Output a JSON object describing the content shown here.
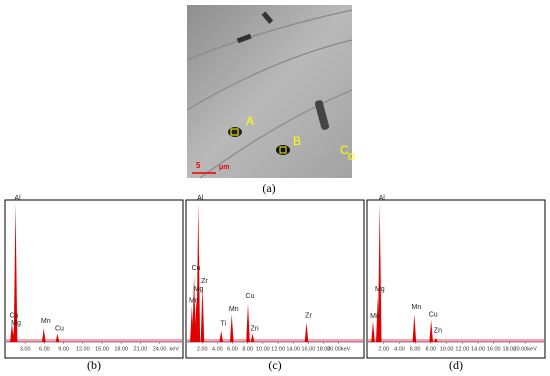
{
  "figure": {
    "micrograph": {
      "caption": "(a)",
      "markers": [
        "A",
        "B",
        "C"
      ],
      "scale_value": "5",
      "scale_unit": "μm"
    },
    "spectra": [
      {
        "caption": "(b)",
        "xlim": [
          0,
          27.5
        ],
        "unit": "keV",
        "xticks": [
          {
            "value": 3,
            "label": "3.00"
          },
          {
            "value": 6,
            "label": "6.00"
          },
          {
            "value": 9,
            "label": "9.00"
          },
          {
            "value": 12,
            "label": "12.00"
          },
          {
            "value": 15,
            "label": "15.00"
          },
          {
            "value": 18,
            "label": "18.00"
          },
          {
            "value": 21,
            "label": "21.00"
          },
          {
            "value": 24,
            "label": "24.00"
          }
        ],
        "peaks": [
          {
            "element": "Al",
            "kev": 1.49,
            "height": 100
          },
          {
            "element": "Cu",
            "kev": 0.93,
            "height": 14
          },
          {
            "element": "Mg",
            "kev": 1.25,
            "height": 10
          },
          {
            "element": "Mn",
            "kev": 5.9,
            "height": 10
          },
          {
            "element": "Cu",
            "kev": 8.04,
            "height": 6
          }
        ]
      },
      {
        "caption": "(c)",
        "xlim": [
          0,
          23.2
        ],
        "xticks": [
          {
            "value": 2,
            "label": "2.00"
          },
          {
            "value": 4,
            "label": "4.00"
          },
          {
            "value": 6,
            "label": "6.00"
          },
          {
            "value": 8,
            "label": "8.00"
          },
          {
            "value": 10,
            "label": "10.00"
          },
          {
            "value": 12,
            "label": "12.00"
          },
          {
            "value": 14,
            "label": "14.00"
          },
          {
            "value": 16,
            "label": "16.00"
          },
          {
            "value": 18,
            "label": "18.00"
          },
          {
            "value": 20,
            "label": "20.00keV"
          }
        ],
        "peaks": [
          {
            "element": "Al",
            "kev": 1.49,
            "height": 100
          },
          {
            "element": "Cu",
            "kev": 0.93,
            "height": 48
          },
          {
            "element": "Zr",
            "kev": 2.04,
            "height": 40
          },
          {
            "element": "Mg",
            "kev": 1.25,
            "height": 33
          },
          {
            "element": "Mn",
            "kev": 0.64,
            "height": 26
          },
          {
            "element": "Ti",
            "kev": 4.51,
            "height": 8
          },
          {
            "element": "Mn",
            "kev": 5.9,
            "height": 20
          },
          {
            "element": "Cu",
            "kev": 8.04,
            "height": 28
          },
          {
            "element": "Zn",
            "kev": 8.64,
            "height": 6
          },
          {
            "element": "Zr",
            "kev": 15.75,
            "height": 14
          }
        ]
      },
      {
        "caption": "(d)",
        "xlim": [
          0,
          22.4
        ],
        "xticks": [
          {
            "value": 2,
            "label": "2.00"
          },
          {
            "value": 4,
            "label": "4.00"
          },
          {
            "value": 6,
            "label": "6.00"
          },
          {
            "value": 8,
            "label": "8.00"
          },
          {
            "value": 10,
            "label": "10.00"
          },
          {
            "value": 12,
            "label": "12.00"
          },
          {
            "value": 14,
            "label": "14.00"
          },
          {
            "value": 16,
            "label": "16.00"
          },
          {
            "value": 18,
            "label": "18.00"
          },
          {
            "value": 20,
            "label": "20.00keV"
          }
        ],
        "peaks": [
          {
            "element": "Al",
            "kev": 1.49,
            "height": 100
          },
          {
            "element": "Mg",
            "kev": 1.25,
            "height": 33
          },
          {
            "element": "Mn",
            "kev": 0.64,
            "height": 15
          },
          {
            "element": "Mn",
            "kev": 5.9,
            "height": 20
          },
          {
            "element": "Cu",
            "kev": 8.04,
            "height": 16
          },
          {
            "element": "Zn",
            "kev": 8.64,
            "height": 3
          }
        ]
      }
    ]
  }
}
